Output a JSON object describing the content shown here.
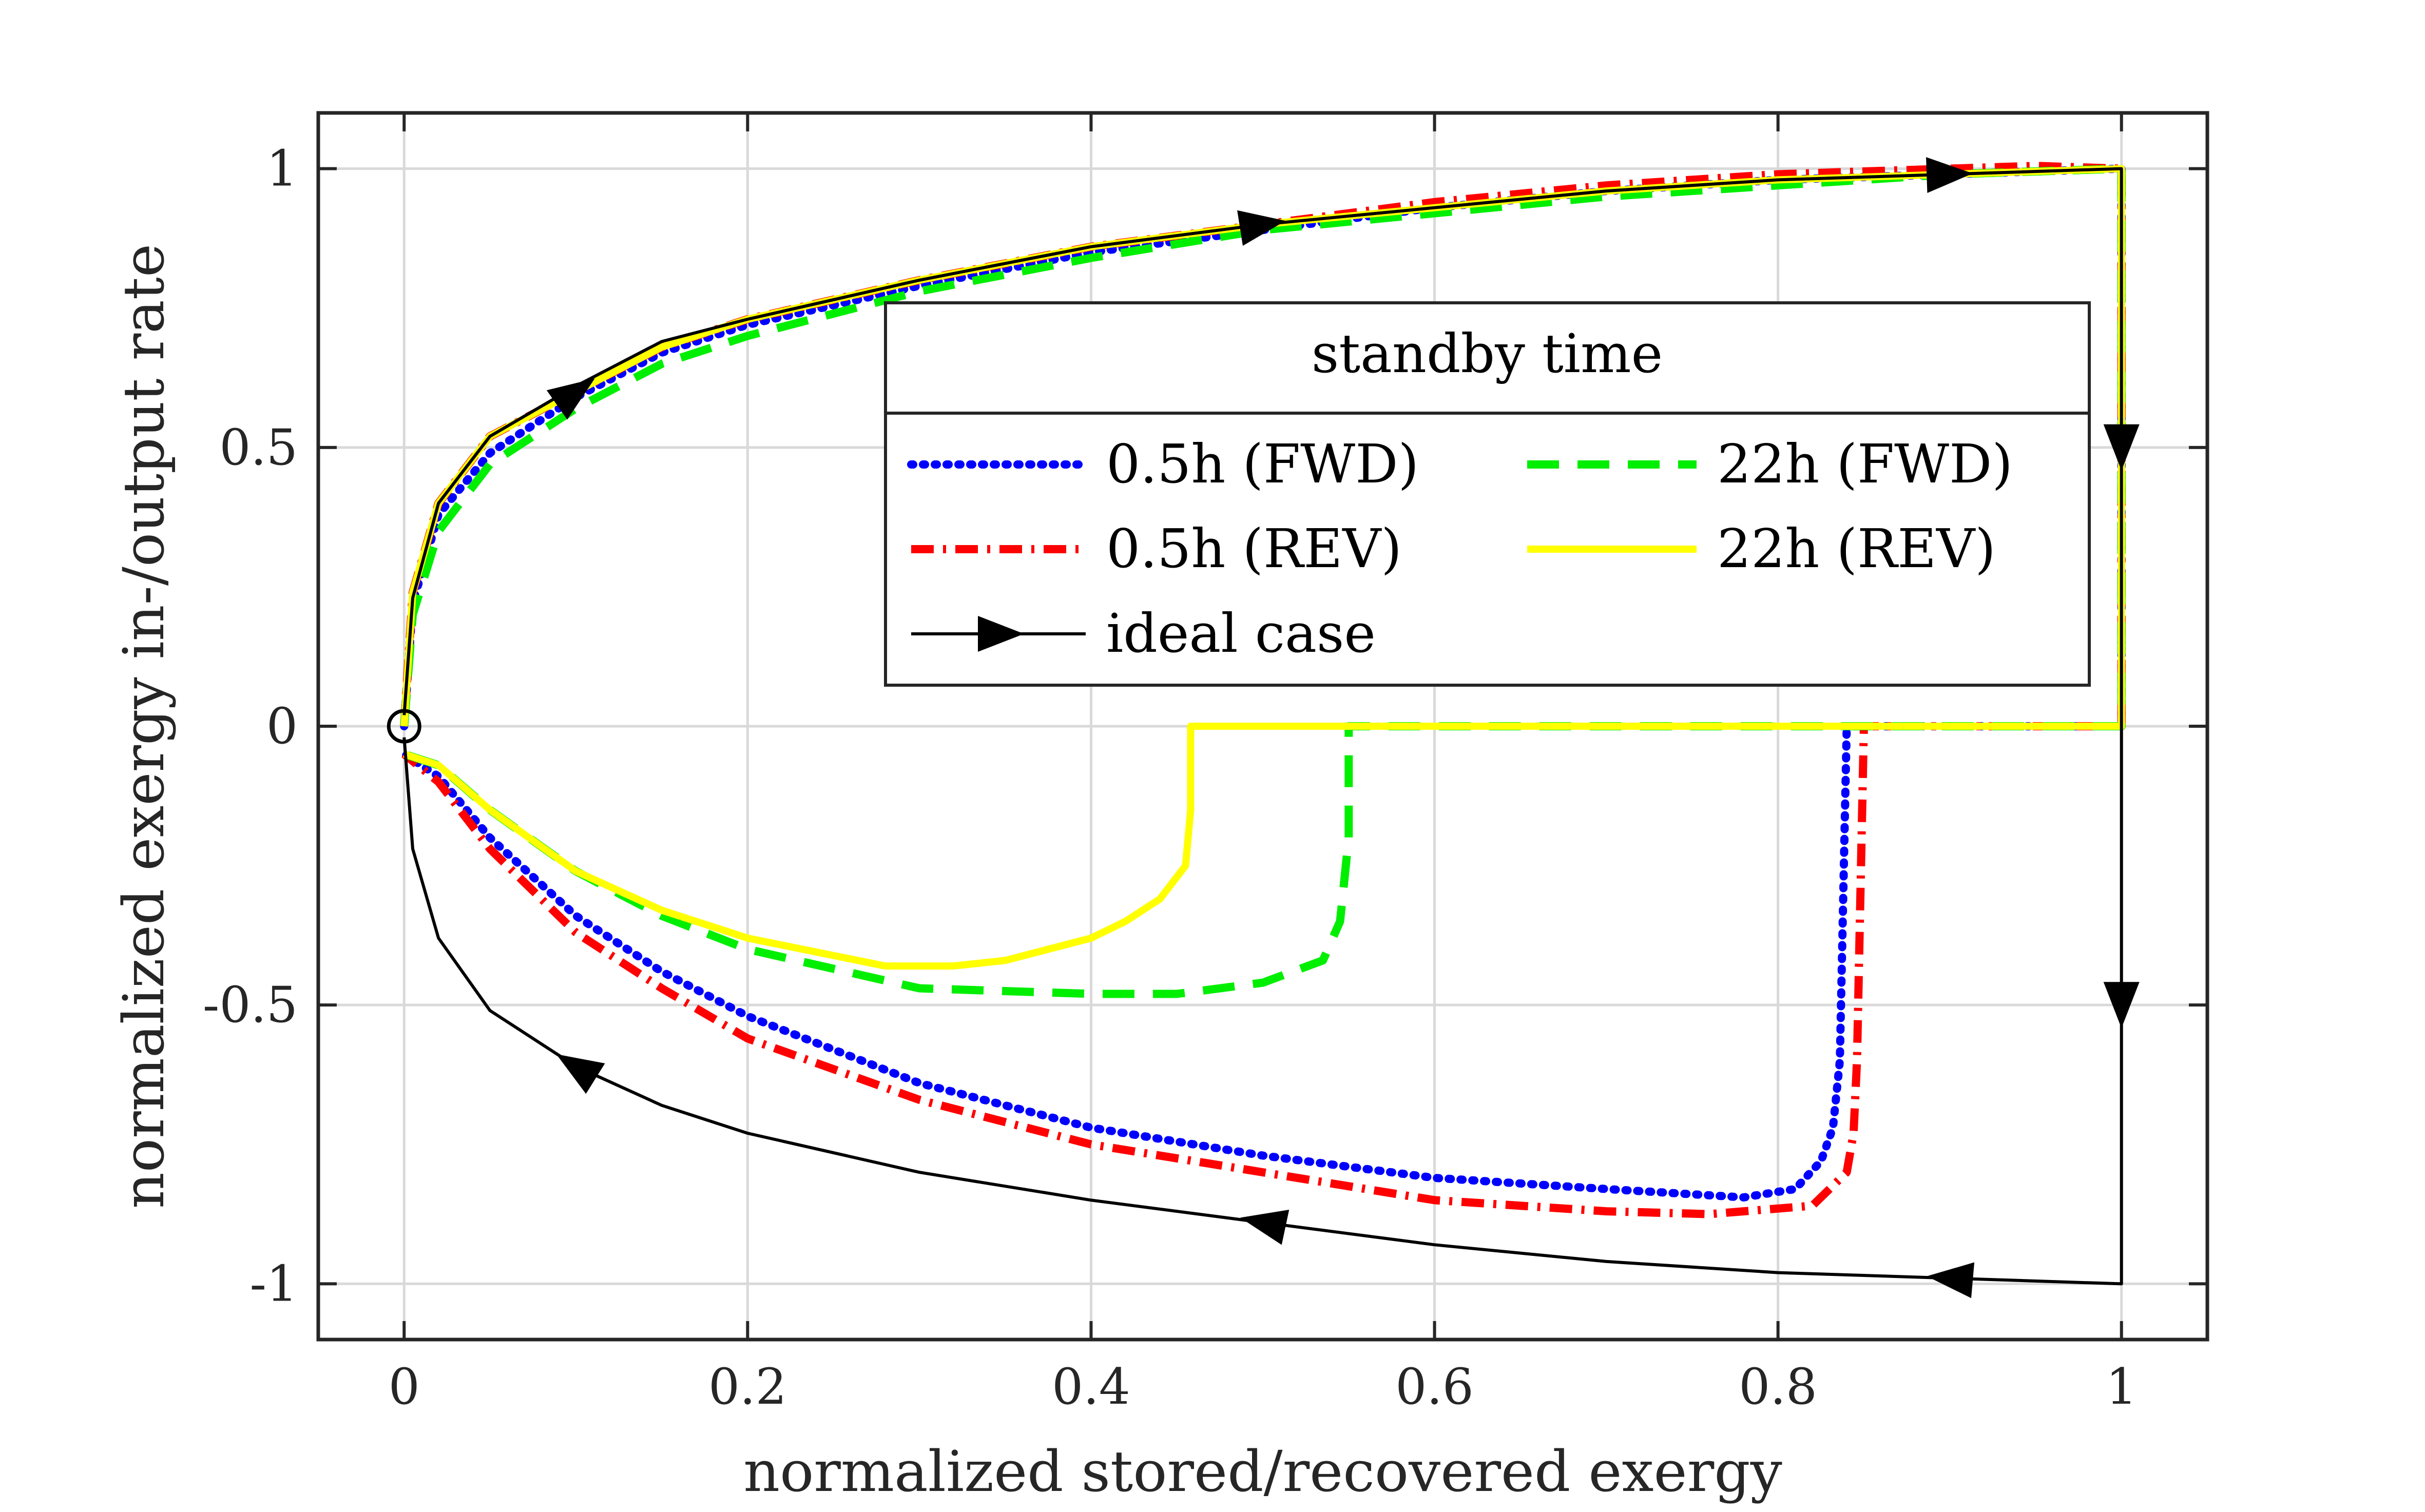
{
  "chart_data": {
    "type": "line",
    "xlabel": "normalized stored/recovered exergy",
    "ylabel": "normalized exergy in-/output rate",
    "xlim": [
      -0.05,
      1.05
    ],
    "ylim": [
      -1.1,
      1.1
    ],
    "xticks": [
      0,
      0.2,
      0.4,
      0.6,
      0.8,
      1
    ],
    "xtick_labels": [
      "0",
      "0.2",
      "0.4",
      "0.6",
      "0.8",
      "1"
    ],
    "yticks": [
      1,
      0.5,
      0,
      -0.5,
      -1
    ],
    "ytick_labels": [
      "1",
      "0.5",
      "0",
      "-0.5",
      "-1"
    ],
    "grid": true,
    "legend": {
      "title": "standby time",
      "placement": "center-right",
      "entries": [
        {
          "label": "0.5h (FWD)",
          "series": "fwd_05"
        },
        {
          "label": "22h (FWD)",
          "series": "fwd_22"
        },
        {
          "label": "0.5h (REV)",
          "series": "rev_05"
        },
        {
          "label": "22h (REV)",
          "series": "rev_22"
        },
        {
          "label": "ideal case",
          "series": "ideal"
        }
      ]
    },
    "series": [
      {
        "id": "fwd_05",
        "name": "0.5h (FWD)",
        "color": "#0000ff",
        "style": "dotted",
        "x": [
          0,
          0.005,
          0.02,
          0.05,
          0.1,
          0.15,
          0.2,
          0.3,
          0.4,
          0.5,
          0.6,
          0.7,
          0.8,
          0.9,
          1,
          1,
          1,
          0.84,
          0.838,
          0.836,
          0.832,
          0.825,
          0.81,
          0.78,
          0.7,
          0.6,
          0.5,
          0.4,
          0.3,
          0.2,
          0.15,
          0.1,
          0.05,
          0.02,
          0
        ],
        "y": [
          0,
          0.22,
          0.38,
          0.49,
          0.59,
          0.67,
          0.72,
          0.79,
          0.85,
          0.89,
          0.93,
          0.96,
          0.98,
          0.99,
          1,
          0.3,
          0,
          0,
          -0.3,
          -0.6,
          -0.72,
          -0.78,
          -0.83,
          -0.845,
          -0.83,
          -0.81,
          -0.77,
          -0.72,
          -0.64,
          -0.52,
          -0.44,
          -0.34,
          -0.2,
          -0.09,
          -0.05
        ]
      },
      {
        "id": "rev_05",
        "name": "0.5h (REV)",
        "color": "#ff0000",
        "style": "dashdot",
        "x": [
          0,
          0.005,
          0.02,
          0.05,
          0.1,
          0.15,
          0.2,
          0.3,
          0.4,
          0.5,
          0.6,
          0.7,
          0.8,
          0.9,
          0.95,
          1,
          1,
          0.85,
          0.848,
          0.846,
          0.844,
          0.84,
          0.82,
          0.76,
          0.7,
          0.6,
          0.5,
          0.4,
          0.3,
          0.2,
          0.15,
          0.1,
          0.05,
          0.02,
          0
        ],
        "y": [
          0,
          0.24,
          0.4,
          0.52,
          0.6,
          0.68,
          0.73,
          0.8,
          0.86,
          0.9,
          0.94,
          0.97,
          0.99,
          1,
          1.005,
          1,
          0,
          0,
          -0.3,
          -0.6,
          -0.73,
          -0.8,
          -0.86,
          -0.875,
          -0.87,
          -0.85,
          -0.8,
          -0.75,
          -0.67,
          -0.56,
          -0.47,
          -0.37,
          -0.22,
          -0.1,
          -0.05
        ]
      },
      {
        "id": "fwd_22",
        "name": "22h (FWD)",
        "color": "#00ee00",
        "style": "dashed",
        "x": [
          0,
          0.005,
          0.02,
          0.05,
          0.1,
          0.15,
          0.2,
          0.3,
          0.4,
          0.5,
          0.6,
          0.7,
          0.8,
          0.9,
          1,
          1,
          0.55,
          0.55,
          0.545,
          0.535,
          0.5,
          0.45,
          0.4,
          0.3,
          0.2,
          0.15,
          0.1,
          0.05,
          0.02,
          0
        ],
        "y": [
          0,
          0.2,
          0.35,
          0.47,
          0.57,
          0.65,
          0.7,
          0.78,
          0.84,
          0.89,
          0.92,
          0.95,
          0.97,
          0.99,
          1,
          0,
          0,
          -0.2,
          -0.35,
          -0.42,
          -0.46,
          -0.48,
          -0.48,
          -0.47,
          -0.4,
          -0.34,
          -0.26,
          -0.15,
          -0.07,
          -0.05
        ]
      },
      {
        "id": "rev_22",
        "name": "22h (REV)",
        "color": "#ffff00",
        "style": "solid",
        "x": [
          0,
          0.005,
          0.02,
          0.05,
          0.1,
          0.15,
          0.2,
          0.3,
          0.4,
          0.5,
          0.6,
          0.7,
          0.8,
          0.9,
          1,
          1,
          0.458,
          0.458,
          0.455,
          0.44,
          0.42,
          0.4,
          0.35,
          0.32,
          0.28,
          0.2,
          0.15,
          0.1,
          0.05,
          0.02,
          0
        ],
        "y": [
          0,
          0.24,
          0.4,
          0.52,
          0.6,
          0.68,
          0.73,
          0.8,
          0.86,
          0.9,
          0.93,
          0.96,
          0.98,
          0.99,
          1,
          0,
          0,
          -0.15,
          -0.25,
          -0.31,
          -0.35,
          -0.38,
          -0.42,
          -0.43,
          -0.43,
          -0.38,
          -0.33,
          -0.26,
          -0.15,
          -0.07,
          -0.05
        ]
      },
      {
        "id": "ideal",
        "name": "ideal case",
        "color": "#000000",
        "style": "solid",
        "x": [
          0,
          0.005,
          0.02,
          0.05,
          0.1,
          0.15,
          0.2,
          0.3,
          0.4,
          0.5,
          0.6,
          0.7,
          0.8,
          0.9,
          1,
          1,
          0.9,
          0.8,
          0.7,
          0.6,
          0.5,
          0.4,
          0.3,
          0.2,
          0.15,
          0.1,
          0.05,
          0.02,
          0.005,
          0
        ],
        "y": [
          0.02,
          0.23,
          0.4,
          0.52,
          0.61,
          0.69,
          0.73,
          0.8,
          0.86,
          0.9,
          0.93,
          0.96,
          0.98,
          0.99,
          1,
          -1,
          -0.99,
          -0.98,
          -0.96,
          -0.93,
          -0.89,
          -0.85,
          -0.8,
          -0.73,
          -0.68,
          -0.61,
          -0.51,
          -0.38,
          -0.22,
          -0.02
        ]
      }
    ],
    "direction_arrows": [
      {
        "x": 0.1,
        "y": 0.6,
        "dir": "forward"
      },
      {
        "x": 0.5,
        "y": 0.9,
        "dir": "forward"
      },
      {
        "x": 0.9,
        "y": 0.99,
        "dir": "forward"
      },
      {
        "x": 1,
        "y": 0.5,
        "dir": "down"
      },
      {
        "x": 1,
        "y": -0.5,
        "dir": "down"
      },
      {
        "x": 0.9,
        "y": -0.99,
        "dir": "back"
      },
      {
        "x": 0.5,
        "y": -0.89,
        "dir": "back"
      },
      {
        "x": 0.1,
        "y": -0.61,
        "dir": "back"
      }
    ],
    "origin_marker": {
      "x": 0,
      "y": 0
    }
  }
}
